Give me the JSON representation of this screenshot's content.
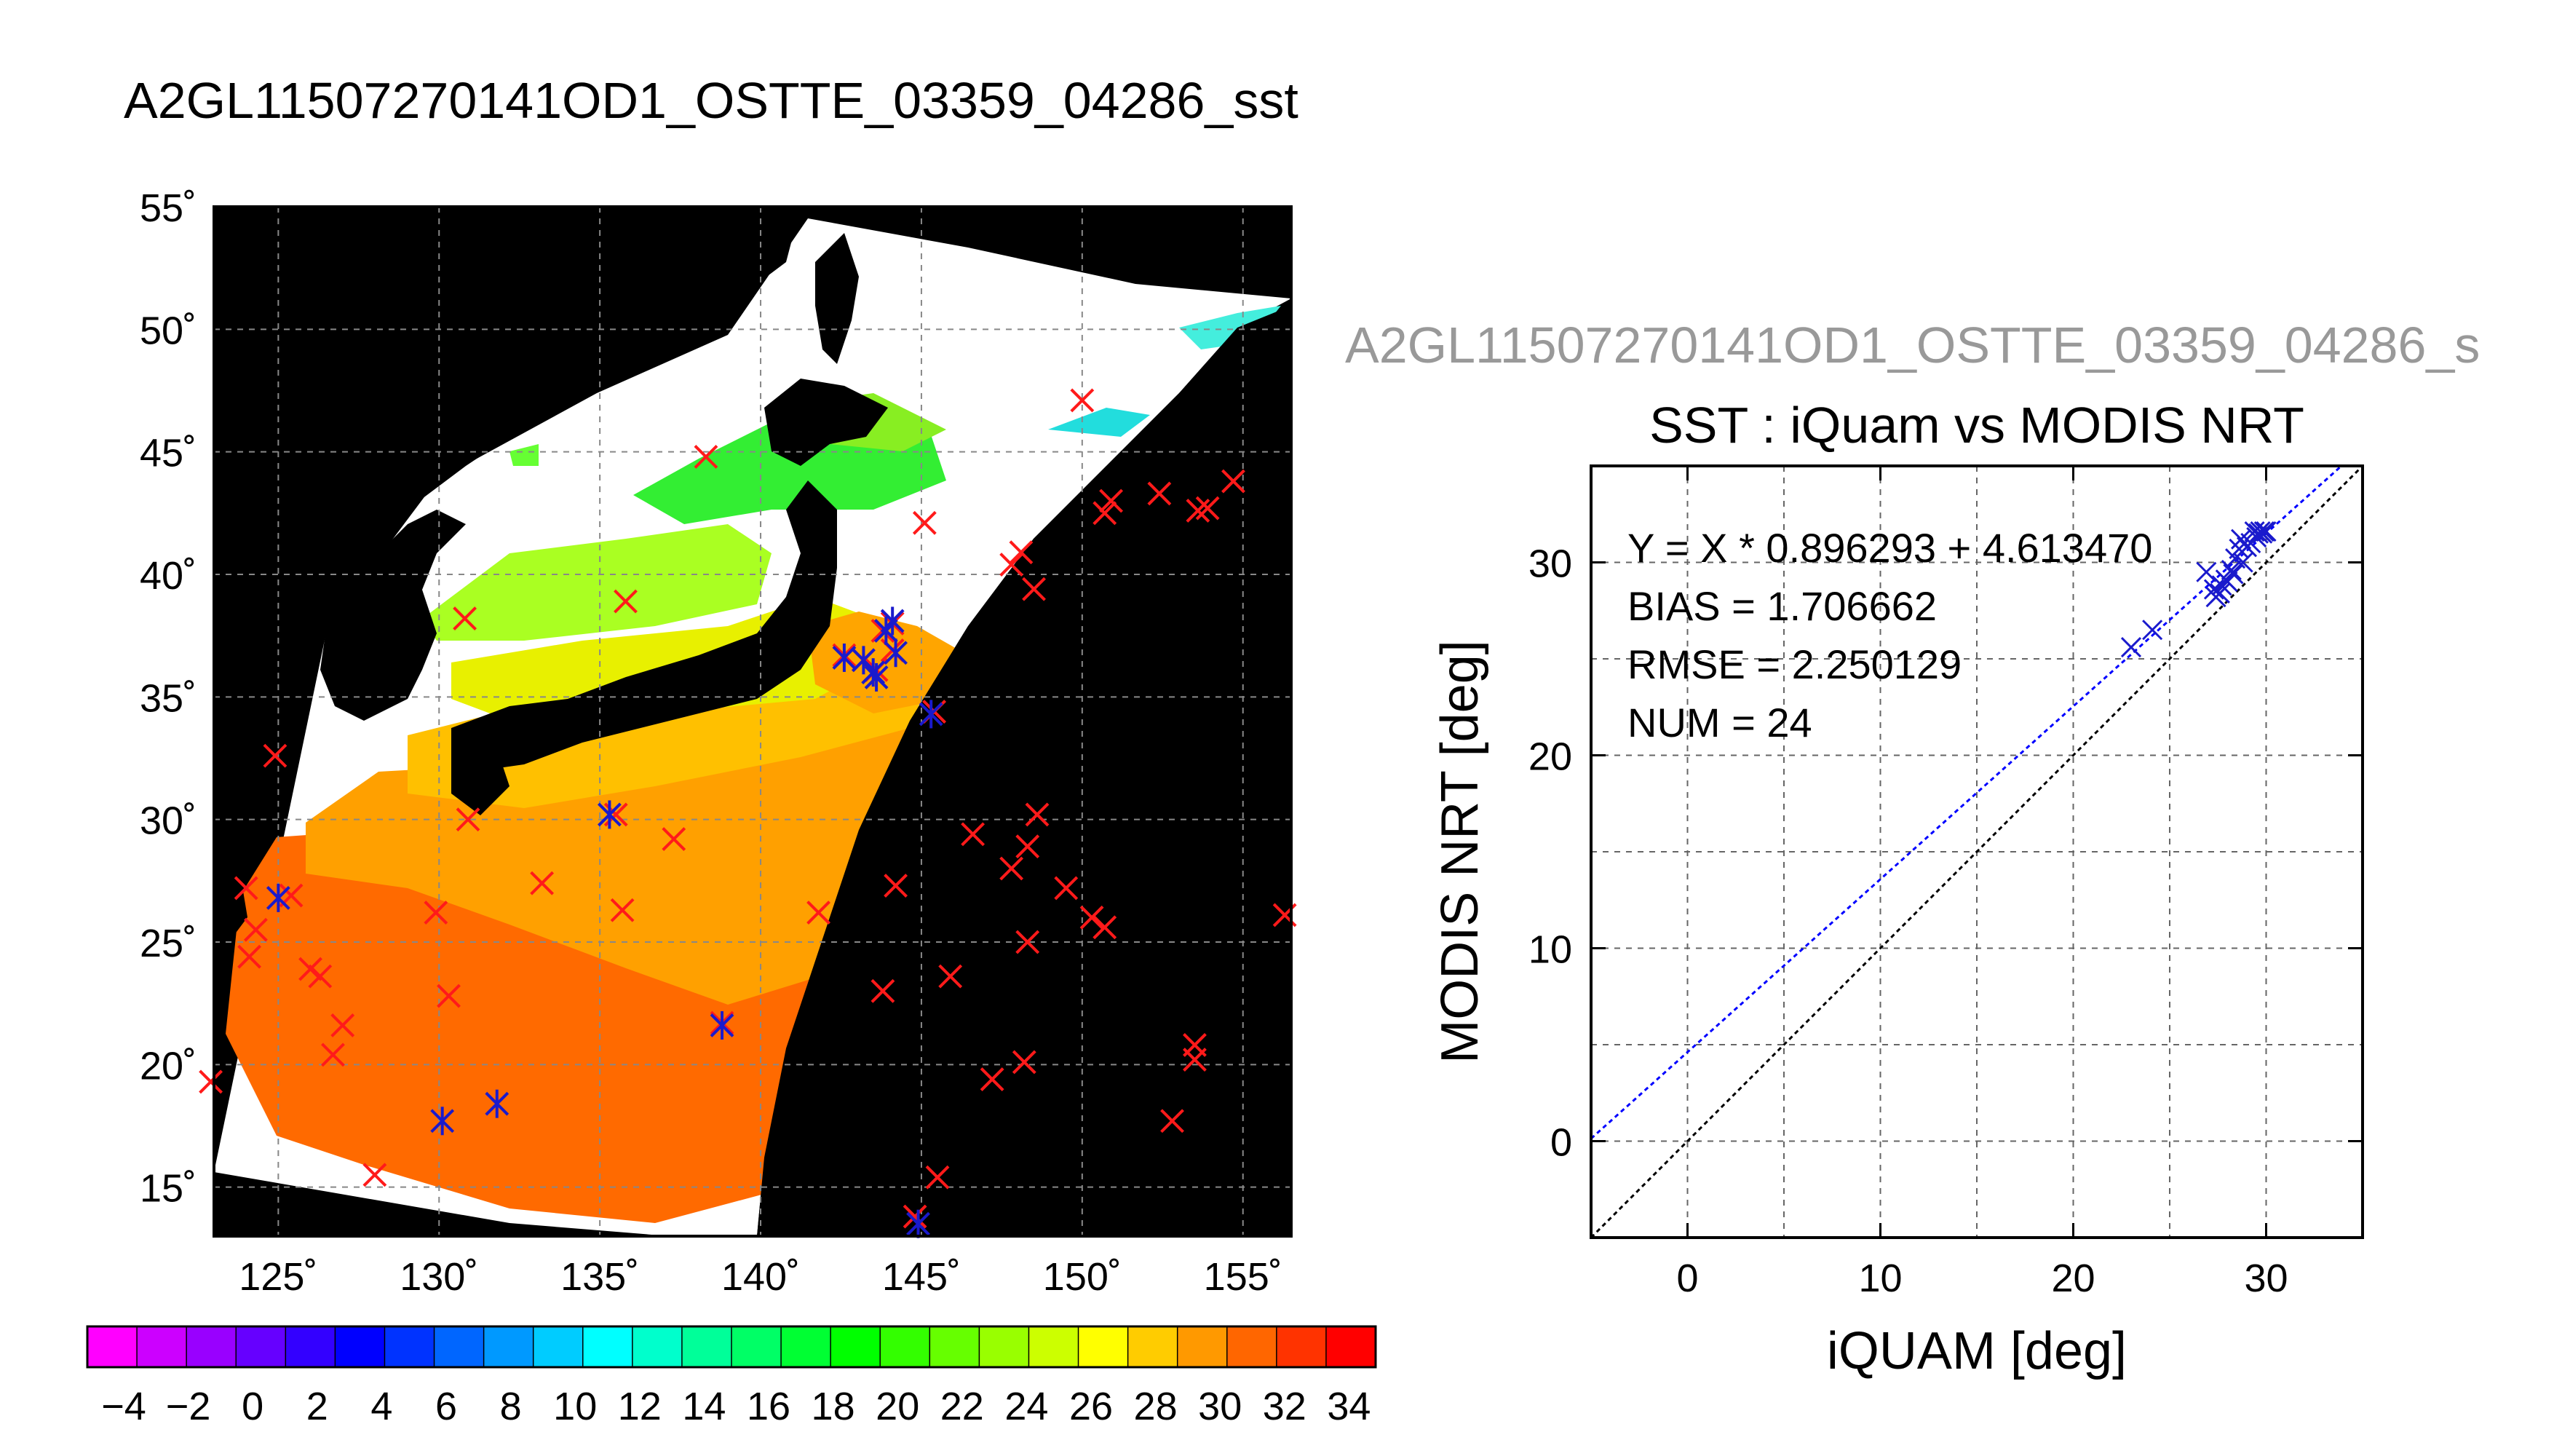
{
  "title": "A2GL11507270141OD1_OSTTE_03359_04286_sst",
  "subtitle_gray": "A2GL11507270141OD1_OSTTE_03359_04286_s",
  "colors": {
    "background": "#ffffff",
    "land": "#000000",
    "cloud": "#ffffff",
    "insitu_marker": "#ff1a1a",
    "modis_marker": "#1a1acc",
    "fit_line": "#0000ff",
    "identity_line": "#000000",
    "gray_text": "#999999"
  },
  "chart_data": [
    {
      "type": "map",
      "name": "sst-map",
      "xlim": [
        123,
        156.5
      ],
      "ylim": [
        13,
        55
      ],
      "x_ticks": [
        125,
        130,
        135,
        140,
        145,
        150,
        155
      ],
      "y_ticks": [
        15,
        20,
        25,
        30,
        35,
        40,
        45,
        50,
        55
      ],
      "x_tick_labels": [
        "125˚",
        "130˚",
        "135˚",
        "140˚",
        "145˚",
        "150˚",
        "155˚"
      ],
      "y_tick_labels": [
        "15˚",
        "20˚",
        "25˚",
        "30˚",
        "35˚",
        "40˚",
        "45˚",
        "50˚",
        "55˚"
      ],
      "grid": true,
      "insitu_points": [
        [
          124.9,
          32.6
        ],
        [
          124.0,
          27.2
        ],
        [
          124.3,
          25.5
        ],
        [
          124.1,
          24.4
        ],
        [
          125.4,
          26.9
        ],
        [
          122.9,
          19.3
        ],
        [
          126.0,
          23.9
        ],
        [
          126.3,
          23.6
        ],
        [
          127.0,
          21.6
        ],
        [
          126.7,
          20.4
        ],
        [
          128.0,
          15.5
        ],
        [
          129.9,
          26.2
        ],
        [
          130.3,
          22.8
        ],
        [
          130.8,
          38.2
        ],
        [
          130.9,
          30.0
        ],
        [
          133.2,
          27.4
        ],
        [
          135.5,
          30.2
        ],
        [
          135.7,
          26.3
        ],
        [
          135.8,
          38.9
        ],
        [
          137.3,
          29.2
        ],
        [
          138.3,
          44.8
        ],
        [
          138.8,
          21.7
        ],
        [
          141.8,
          26.2
        ],
        [
          142.6,
          36.7
        ],
        [
          143.2,
          36.5
        ],
        [
          143.6,
          36.1
        ],
        [
          143.8,
          37.7
        ],
        [
          144.1,
          38.0
        ],
        [
          144.1,
          36.9
        ],
        [
          144.2,
          27.3
        ],
        [
          144.8,
          13.8
        ],
        [
          145.1,
          42.1
        ],
        [
          145.4,
          34.4
        ],
        [
          145.5,
          15.4
        ],
        [
          145.9,
          23.6
        ],
        [
          146.6,
          29.4
        ],
        [
          147.2,
          19.4
        ],
        [
          147.8,
          40.4
        ],
        [
          148.1,
          40.9
        ],
        [
          147.8,
          28.0
        ],
        [
          148.3,
          28.9
        ],
        [
          148.3,
          25.0
        ],
        [
          148.2,
          20.1
        ],
        [
          148.5,
          39.4
        ],
        [
          148.6,
          30.2
        ],
        [
          149.5,
          27.2
        ],
        [
          150.0,
          47.1
        ],
        [
          150.3,
          26.0
        ],
        [
          150.7,
          25.6
        ],
        [
          150.7,
          42.5
        ],
        [
          150.9,
          43.0
        ],
        [
          152.4,
          43.3
        ],
        [
          152.8,
          17.7
        ],
        [
          153.6,
          42.6
        ],
        [
          153.9,
          42.7
        ],
        [
          153.5,
          20.8
        ],
        [
          153.5,
          20.2
        ],
        [
          154.7,
          43.8
        ],
        [
          156.3,
          26.1
        ],
        [
          143.8,
          23.0
        ]
      ],
      "modis_points": [
        [
          125.0,
          26.8
        ],
        [
          130.1,
          17.7
        ],
        [
          131.8,
          18.4
        ],
        [
          135.3,
          30.2
        ],
        [
          138.8,
          21.6
        ],
        [
          142.6,
          36.6
        ],
        [
          143.2,
          36.5
        ],
        [
          143.5,
          36.0
        ],
        [
          143.6,
          35.8
        ],
        [
          143.9,
          37.7
        ],
        [
          144.1,
          38.1
        ],
        [
          144.2,
          36.8
        ],
        [
          145.3,
          34.3
        ],
        [
          144.9,
          13.5
        ]
      ]
    },
    {
      "type": "scatter",
      "name": "sst-scatter",
      "title": "SST : iQuam vs MODIS NRT",
      "xlabel": "iQUAM [deg]",
      "ylabel": "MODIS NRT [deg]",
      "xlim": [
        -5,
        35
      ],
      "ylim": [
        -5,
        35
      ],
      "x_ticks": [
        0,
        10,
        20,
        30
      ],
      "y_ticks": [
        0,
        10,
        20,
        30
      ],
      "grid": true,
      "annotations": [
        "Y = X * 0.896293 + 4.613470",
        "BIAS = 1.706662",
        "RMSE = 2.250129",
        "NUM = 24"
      ],
      "fit": {
        "slope": 0.896293,
        "intercept": 4.61347
      },
      "identity_line": true,
      "points": [
        [
          23.0,
          25.6
        ],
        [
          24.1,
          26.5
        ],
        [
          26.9,
          29.5
        ],
        [
          27.3,
          28.6
        ],
        [
          27.4,
          28.2
        ],
        [
          27.6,
          28.4
        ],
        [
          27.9,
          29.1
        ],
        [
          28.2,
          29.6
        ],
        [
          28.4,
          30.2
        ],
        [
          28.3,
          29.4
        ],
        [
          28.6,
          30.7
        ],
        [
          28.8,
          30.0
        ],
        [
          28.7,
          31.2
        ],
        [
          29.0,
          30.8
        ],
        [
          29.2,
          31.0
        ],
        [
          29.4,
          31.6
        ],
        [
          29.5,
          31.3
        ],
        [
          29.6,
          31.5
        ],
        [
          29.7,
          31.6
        ],
        [
          29.8,
          31.5
        ],
        [
          29.9,
          31.6
        ],
        [
          30.0,
          31.6
        ],
        [
          28.0,
          29.0
        ],
        [
          27.7,
          28.8
        ]
      ]
    }
  ],
  "colorbar": {
    "labels": [
      "−4",
      "−2",
      "0",
      "2",
      "4",
      "6",
      "8",
      "10",
      "12",
      "14",
      "16",
      "18",
      "20",
      "22",
      "24",
      "26",
      "28",
      "30",
      "32",
      "34"
    ],
    "colors": [
      "#ff00ff",
      "#cc00ff",
      "#9900ff",
      "#6600ff",
      "#3300ff",
      "#0000ff",
      "#0033ff",
      "#0066ff",
      "#0099ff",
      "#00ccff",
      "#00ffff",
      "#00ffcc",
      "#00ff99",
      "#00ff66",
      "#00ff33",
      "#00ff00",
      "#33ff00",
      "#66ff00",
      "#99ff00",
      "#ccff00",
      "#ffff00",
      "#ffcc00",
      "#ff9900",
      "#ff6600",
      "#ff3300",
      "#ff0000"
    ]
  }
}
